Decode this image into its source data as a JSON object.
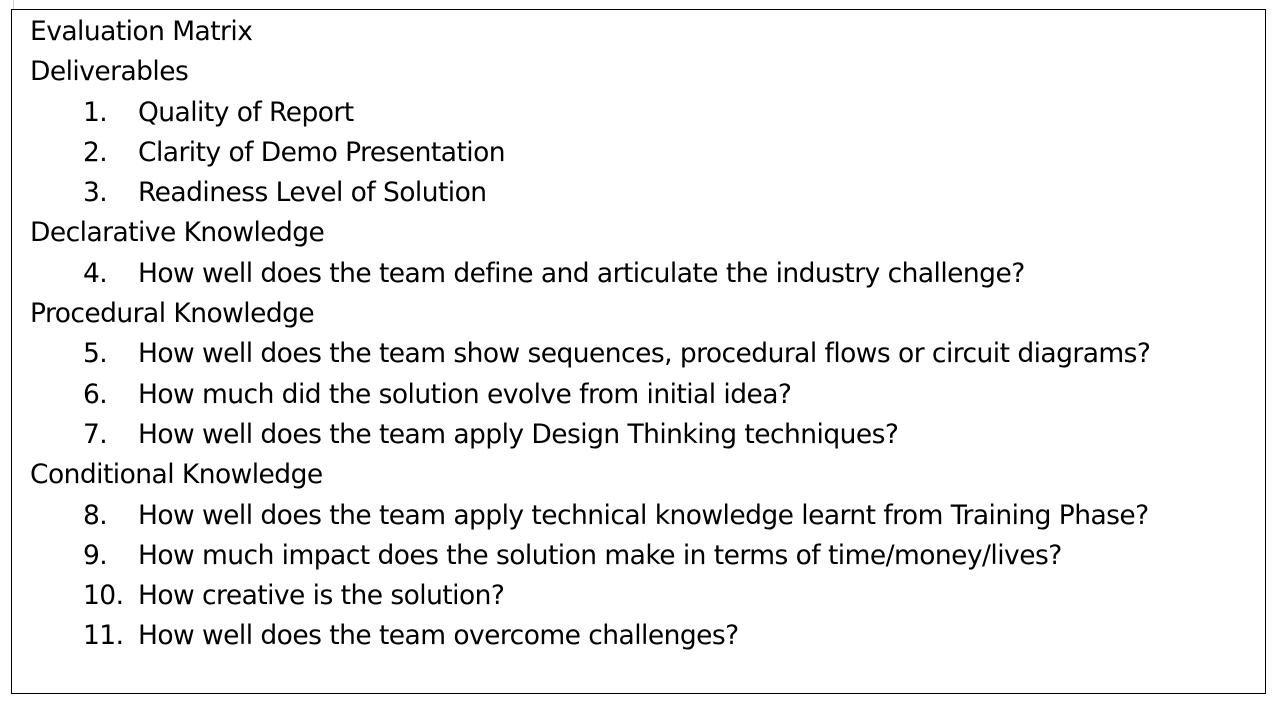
{
  "title": "Evaluation Matrix",
  "sections": [
    {
      "heading": "Deliverables",
      "items": [
        {
          "number": "1.",
          "text": "Quality of Report"
        },
        {
          "number": "2.",
          "text": "Clarity of Demo Presentation"
        },
        {
          "number": "3.",
          "text": "Readiness Level of Solution"
        }
      ]
    },
    {
      "heading": "Declarative Knowledge",
      "items": [
        {
          "number": "4.",
          "text": "How well does the team define and articulate the industry challenge?"
        }
      ]
    },
    {
      "heading": "Procedural Knowledge",
      "items": [
        {
          "number": "5.",
          "text": "How well does the team show sequences, procedural flows or circuit diagrams?"
        },
        {
          "number": "6.",
          "text": "How much did the solution evolve from initial idea?"
        },
        {
          "number": "7.",
          "text": "How well does the team apply Design Thinking techniques?"
        }
      ]
    },
    {
      "heading": "Conditional Knowledge",
      "items": [
        {
          "number": "8.",
          "text": "How well does the team apply technical knowledge learnt from Training Phase?"
        },
        {
          "number": "9.",
          "text": "How much impact does the solution make in terms of time/money/lives?"
        },
        {
          "number": "10.",
          "text": "How creative is the solution?"
        },
        {
          "number": "11.",
          "text": "How well does the team overcome challenges?"
        }
      ]
    }
  ]
}
